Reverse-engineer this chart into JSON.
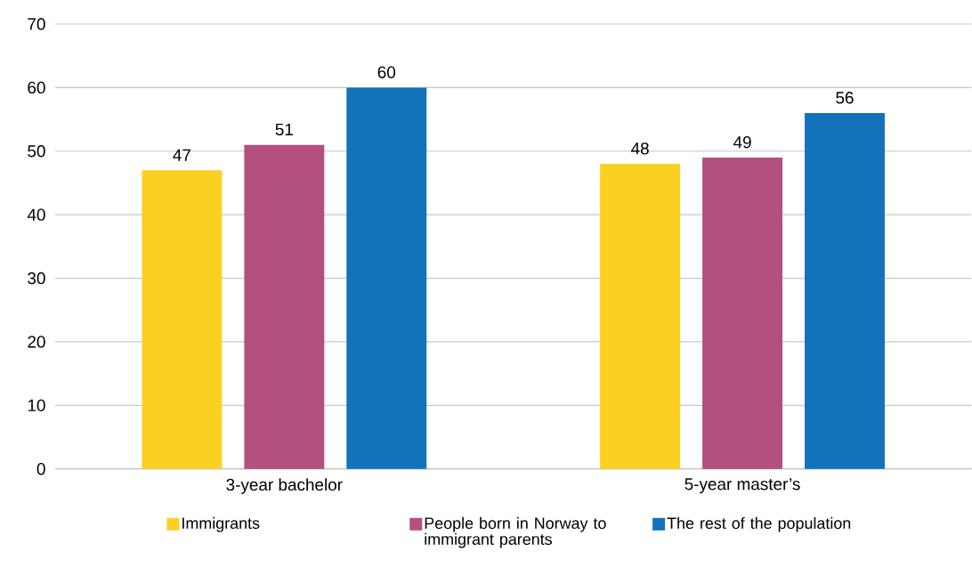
{
  "chart_data": {
    "type": "bar",
    "categories": [
      "3-year bachelor",
      "5-year master’s"
    ],
    "series": [
      {
        "name": "Immigrants",
        "color": "#fcd022",
        "values": [
          47,
          48
        ]
      },
      {
        "name": "People born in Norway to immigrant parents",
        "color": "#b3507d",
        "values": [
          51,
          49
        ]
      },
      {
        "name": "The rest of the population",
        "color": "#1273bb",
        "values": [
          60,
          56
        ]
      }
    ],
    "ylim": [
      0,
      70
    ],
    "yticks": [
      0,
      10,
      20,
      30,
      40,
      50,
      60,
      70
    ],
    "grid": "y",
    "legend": "bottom",
    "data_labels": true
  }
}
